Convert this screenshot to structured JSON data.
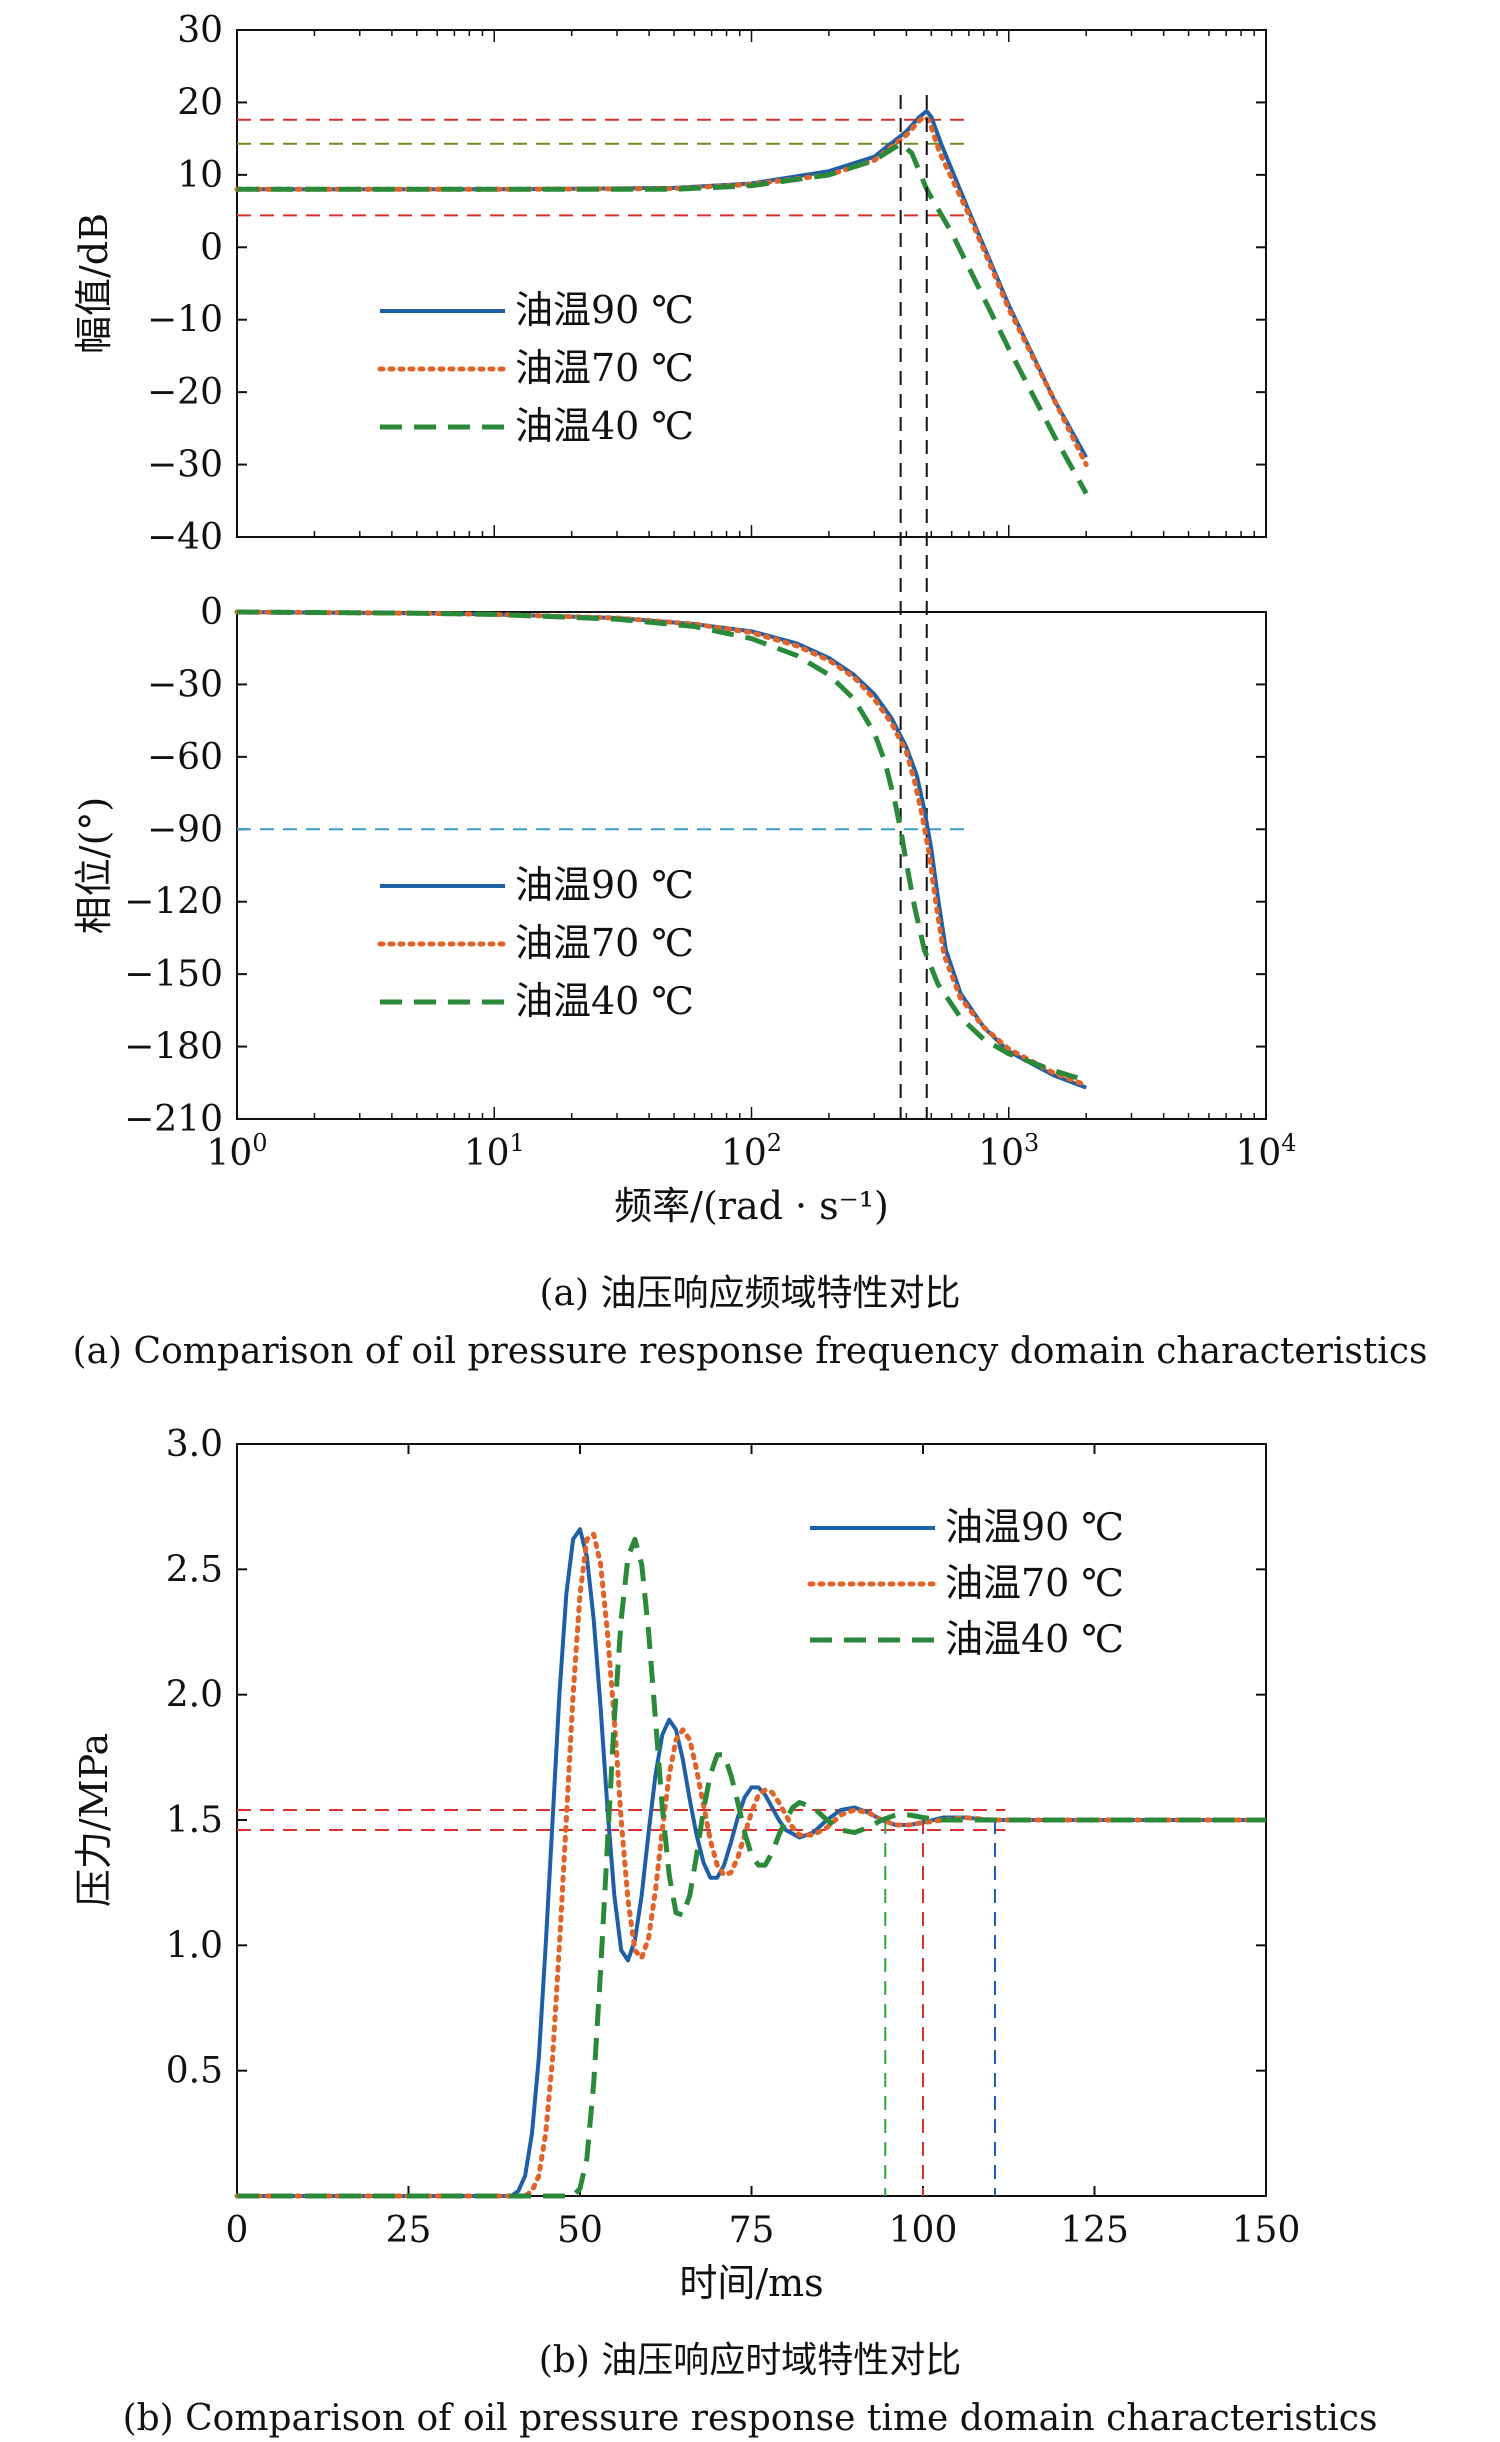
{
  "chart_data": [
    {
      "id": "amplitude",
      "type": "line",
      "xscale": "log",
      "xlim": [
        1,
        10000
      ],
      "ylim": [
        -40,
        30
      ],
      "ylabel": "幅值/dB",
      "xlabel": "",
      "yticks": [
        -40,
        -30,
        -20,
        -10,
        0,
        10,
        20,
        30
      ],
      "ytick_labels": [
        "−40",
        "−30",
        "−20",
        "−10",
        "0",
        "10",
        "20",
        "30"
      ],
      "legend_position": "middle-left",
      "series": [
        {
          "name": "油温90 ℃",
          "color": "#1f5fa6",
          "dash": "solid",
          "x": [
            1,
            10,
            50,
            100,
            200,
            300,
            400,
            450,
            480,
            500,
            550,
            700,
            1000,
            1500,
            2000
          ],
          "y": [
            8,
            8,
            8.2,
            8.8,
            10.5,
            12.5,
            16,
            18,
            18.8,
            18,
            14,
            5,
            -8,
            -21,
            -29
          ]
        },
        {
          "name": "油温70 ℃",
          "color": "#e0632a",
          "dash": "dotted",
          "x": [
            1,
            10,
            50,
            100,
            200,
            300,
            400,
            450,
            470,
            490,
            540,
            700,
            1000,
            1500,
            2000
          ],
          "y": [
            8,
            8,
            8.1,
            8.7,
            10,
            12,
            15.5,
            17.5,
            18,
            17.5,
            13,
            4.5,
            -8.5,
            -21,
            -30
          ]
        },
        {
          "name": "油温40 ℃",
          "color": "#2a8a3a",
          "dash": "dashed",
          "x": [
            1,
            10,
            50,
            100,
            200,
            300,
            350,
            380,
            420,
            480,
            600,
            800,
            1000,
            1500,
            2000
          ],
          "y": [
            8,
            8,
            8,
            8.5,
            10,
            12,
            13.5,
            14.3,
            13,
            8,
            2,
            -7,
            -14,
            -26,
            -34
          ]
        }
      ],
      "ref_lines": [
        {
          "axis": "h",
          "value": 17.6,
          "color": "#d9302c"
        },
        {
          "axis": "h",
          "value": 14.3,
          "color": "#6b8e23"
        },
        {
          "axis": "h",
          "value": 4.4,
          "color": "#d9302c"
        }
      ]
    },
    {
      "id": "phase",
      "type": "line",
      "xscale": "log",
      "xlim": [
        1,
        10000
      ],
      "ylim": [
        -210,
        0
      ],
      "ylabel": "相位/(°)",
      "xlabel": "频率/(rad · s⁻¹)",
      "yticks": [
        -210,
        -180,
        -150,
        -120,
        -90,
        -60,
        -30,
        0
      ],
      "ytick_labels": [
        "−210",
        "−180",
        "−150",
        "−120",
        "−90",
        "−60",
        "−30",
        "0"
      ],
      "xticks": [
        1,
        10,
        100,
        1000,
        10000
      ],
      "xtick_labels": [
        [
          "10",
          "0"
        ],
        [
          "10",
          "1"
        ],
        [
          "10",
          "2"
        ],
        [
          "10",
          "3"
        ],
        [
          "10",
          "4"
        ]
      ],
      "legend_position": "lower-left",
      "series": [
        {
          "name": "油温90 ℃",
          "color": "#1f5fa6",
          "dash": "solid",
          "x": [
            1,
            5,
            10,
            30,
            60,
            100,
            150,
            200,
            250,
            300,
            350,
            400,
            440,
            470,
            500,
            530,
            570,
            650,
            800,
            1000,
            1500,
            2000
          ],
          "y": [
            0,
            -0.5,
            -1,
            -2.5,
            -5,
            -8,
            -13,
            -19,
            -26,
            -34,
            -44,
            -56,
            -68,
            -82,
            -98,
            -118,
            -140,
            -158,
            -172,
            -182,
            -192,
            -197
          ]
        },
        {
          "name": "油温70 ℃",
          "color": "#e0632a",
          "dash": "dotted",
          "x": [
            1,
            5,
            10,
            30,
            60,
            100,
            150,
            200,
            250,
            300,
            350,
            400,
            430,
            460,
            490,
            520,
            560,
            650,
            800,
            1000,
            1500,
            2000
          ],
          "y": [
            0,
            -0.5,
            -1,
            -2.5,
            -5,
            -8.5,
            -14,
            -20,
            -27,
            -36,
            -46,
            -58,
            -70,
            -84,
            -100,
            -120,
            -142,
            -160,
            -172,
            -181,
            -191,
            -196
          ]
        },
        {
          "name": "油温40 ℃",
          "color": "#2a8a3a",
          "dash": "dashed",
          "x": [
            1,
            5,
            10,
            30,
            60,
            100,
            150,
            200,
            250,
            300,
            330,
            360,
            380,
            400,
            430,
            470,
            530,
            650,
            800,
            1000,
            1500,
            2000
          ],
          "y": [
            0,
            -0.5,
            -1,
            -3,
            -6,
            -11,
            -18,
            -26,
            -36,
            -50,
            -62,
            -78,
            -90,
            -104,
            -122,
            -140,
            -154,
            -168,
            -177,
            -183,
            -190,
            -194
          ]
        }
      ],
      "ref_lines": [
        {
          "axis": "h",
          "value": -90,
          "color": "#3a9bc7"
        }
      ],
      "vlines": [
        {
          "value": 380,
          "color": "#111111"
        },
        {
          "value": 480,
          "color": "#111111"
        }
      ],
      "caption_cn": "(a) 油压响应频域特性对比",
      "caption_en": "(a) Comparison of oil pressure response frequency domain characteristics"
    },
    {
      "id": "time",
      "type": "line",
      "xlim": [
        0,
        150
      ],
      "ylim": [
        0,
        3.0
      ],
      "ylabel": "压力/MPa",
      "xlabel": "时间/ms",
      "yticks": [
        0.5,
        1.0,
        1.5,
        2.0,
        2.5,
        3.0
      ],
      "ytick_labels": [
        "0.5",
        "1.0",
        "1.5",
        "2.0",
        "2.5",
        "3.0"
      ],
      "xticks": [
        0,
        25,
        50,
        75,
        100,
        125,
        150
      ],
      "xtick_labels": [
        "0",
        "25",
        "50",
        "75",
        "100",
        "125",
        "150"
      ],
      "legend_position": "top-right",
      "series": [
        {
          "name": "油温90 ℃",
          "color": "#1f5fa6",
          "dash": "solid",
          "x": [
            0,
            40,
            41,
            42,
            43,
            44,
            45,
            46,
            47,
            48,
            49,
            50,
            51,
            52,
            53,
            54,
            55,
            56,
            57,
            58,
            59,
            60,
            61,
            62,
            63,
            64,
            65,
            66,
            67,
            68,
            69,
            70,
            71,
            72,
            73,
            74,
            75,
            76,
            77,
            78,
            79,
            80,
            82,
            84,
            86,
            88,
            90,
            92,
            94,
            96,
            98,
            100,
            103,
            106,
            110,
            115,
            120,
            130,
            150
          ],
          "y": [
            0,
            0,
            0.02,
            0.08,
            0.25,
            0.55,
            1.0,
            1.5,
            2.0,
            2.4,
            2.62,
            2.66,
            2.55,
            2.3,
            1.95,
            1.55,
            1.2,
            0.98,
            0.94,
            1.02,
            1.2,
            1.45,
            1.68,
            1.84,
            1.9,
            1.86,
            1.74,
            1.58,
            1.44,
            1.33,
            1.27,
            1.27,
            1.32,
            1.41,
            1.51,
            1.59,
            1.63,
            1.63,
            1.6,
            1.55,
            1.5,
            1.46,
            1.43,
            1.45,
            1.5,
            1.54,
            1.55,
            1.53,
            1.5,
            1.48,
            1.48,
            1.49,
            1.51,
            1.51,
            1.5,
            1.5,
            1.5,
            1.5,
            1.5
          ]
        },
        {
          "name": "油温70 ℃",
          "color": "#e0632a",
          "dash": "dotted",
          "x": [
            0,
            42,
            43,
            44,
            45,
            46,
            47,
            48,
            49,
            50,
            51,
            52,
            53,
            54,
            55,
            56,
            57,
            58,
            59,
            60,
            61,
            62,
            63,
            64,
            65,
            66,
            67,
            68,
            69,
            70,
            71,
            72,
            73,
            74,
            75,
            76,
            77,
            78,
            79,
            80,
            81,
            82,
            84,
            86,
            88,
            90,
            92,
            94,
            96,
            98,
            100,
            103,
            106,
            110,
            115,
            120,
            130,
            150
          ],
          "y": [
            0,
            0,
            0.02,
            0.08,
            0.25,
            0.55,
            1.0,
            1.5,
            2.0,
            2.4,
            2.62,
            2.64,
            2.52,
            2.25,
            1.9,
            1.5,
            1.18,
            0.98,
            0.95,
            1.03,
            1.22,
            1.46,
            1.68,
            1.82,
            1.86,
            1.82,
            1.7,
            1.56,
            1.42,
            1.32,
            1.28,
            1.29,
            1.35,
            1.44,
            1.53,
            1.6,
            1.62,
            1.61,
            1.57,
            1.52,
            1.47,
            1.44,
            1.44,
            1.47,
            1.52,
            1.54,
            1.53,
            1.5,
            1.48,
            1.48,
            1.49,
            1.5,
            1.51,
            1.5,
            1.5,
            1.5,
            1.5,
            1.5
          ]
        },
        {
          "name": "油温40 ℃",
          "color": "#2a8a3a",
          "dash": "dashed",
          "x": [
            0,
            49,
            50,
            51,
            52,
            53,
            54,
            55,
            56,
            57,
            58,
            59,
            60,
            61,
            62,
            63,
            64,
            65,
            66,
            67,
            68,
            69,
            70,
            71,
            72,
            73,
            74,
            75,
            76,
            77,
            78,
            79,
            80,
            81,
            82,
            84,
            86,
            88,
            90,
            92,
            94,
            96,
            98,
            100,
            103,
            106,
            110,
            115,
            120,
            130,
            150
          ],
          "y": [
            0,
            0,
            0.03,
            0.15,
            0.45,
            0.9,
            1.4,
            1.9,
            2.3,
            2.55,
            2.62,
            2.52,
            2.25,
            1.9,
            1.55,
            1.28,
            1.13,
            1.12,
            1.2,
            1.36,
            1.54,
            1.68,
            1.76,
            1.76,
            1.68,
            1.57,
            1.45,
            1.36,
            1.32,
            1.32,
            1.37,
            1.44,
            1.5,
            1.55,
            1.57,
            1.55,
            1.5,
            1.46,
            1.45,
            1.47,
            1.5,
            1.52,
            1.52,
            1.51,
            1.5,
            1.5,
            1.5,
            1.5,
            1.5,
            1.5,
            1.5
          ]
        }
      ],
      "ref_lines": [
        {
          "axis": "h",
          "value": 1.54,
          "color": "#d9302c"
        },
        {
          "axis": "h",
          "value": 1.46,
          "color": "#d9302c"
        }
      ],
      "vlines": [
        {
          "value": 94.5,
          "color": "#2aa84a"
        },
        {
          "value": 100,
          "color": "#d9302c"
        },
        {
          "value": 110.5,
          "color": "#1f5fa6"
        }
      ],
      "caption_cn": "(b) 油压响应时域特性对比",
      "caption_en": "(b) Comparison of oil pressure response time domain characteristics"
    }
  ]
}
